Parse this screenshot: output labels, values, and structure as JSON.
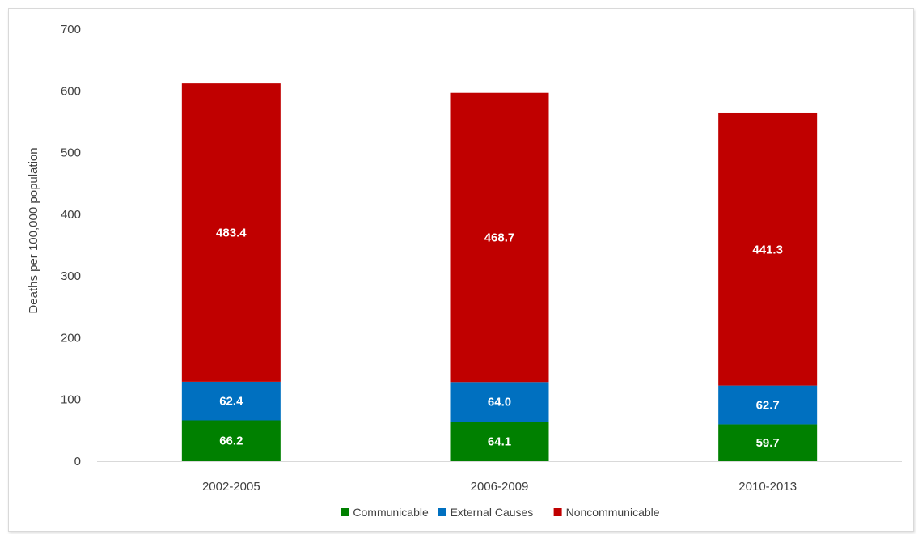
{
  "chart_data": {
    "type": "bar",
    "stacked": true,
    "title": "",
    "xlabel": "",
    "ylabel": "Deaths per 100,000 population",
    "ylim": [
      0,
      700
    ],
    "yticks": [
      0,
      100,
      200,
      300,
      400,
      500,
      600,
      700
    ],
    "grid": false,
    "legend_position": "bottom",
    "categories": [
      "2002-2005",
      "2006-2009",
      "2010-2013"
    ],
    "series": [
      {
        "name": "Communicable",
        "color": "#008000",
        "values": [
          66.2,
          64.1,
          59.7
        ],
        "labels": [
          "66.2",
          "64.1",
          "59.7"
        ]
      },
      {
        "name": "External Causes",
        "color": "#0070C0",
        "values": [
          62.4,
          64.0,
          62.7
        ],
        "labels": [
          "62.4",
          "64.0",
          "62.7"
        ]
      },
      {
        "name": "Noncommunicable",
        "color": "#C00000",
        "values": [
          483.4,
          468.7,
          441.3
        ],
        "labels": [
          "483.4",
          "468.7",
          "441.3"
        ]
      }
    ]
  }
}
